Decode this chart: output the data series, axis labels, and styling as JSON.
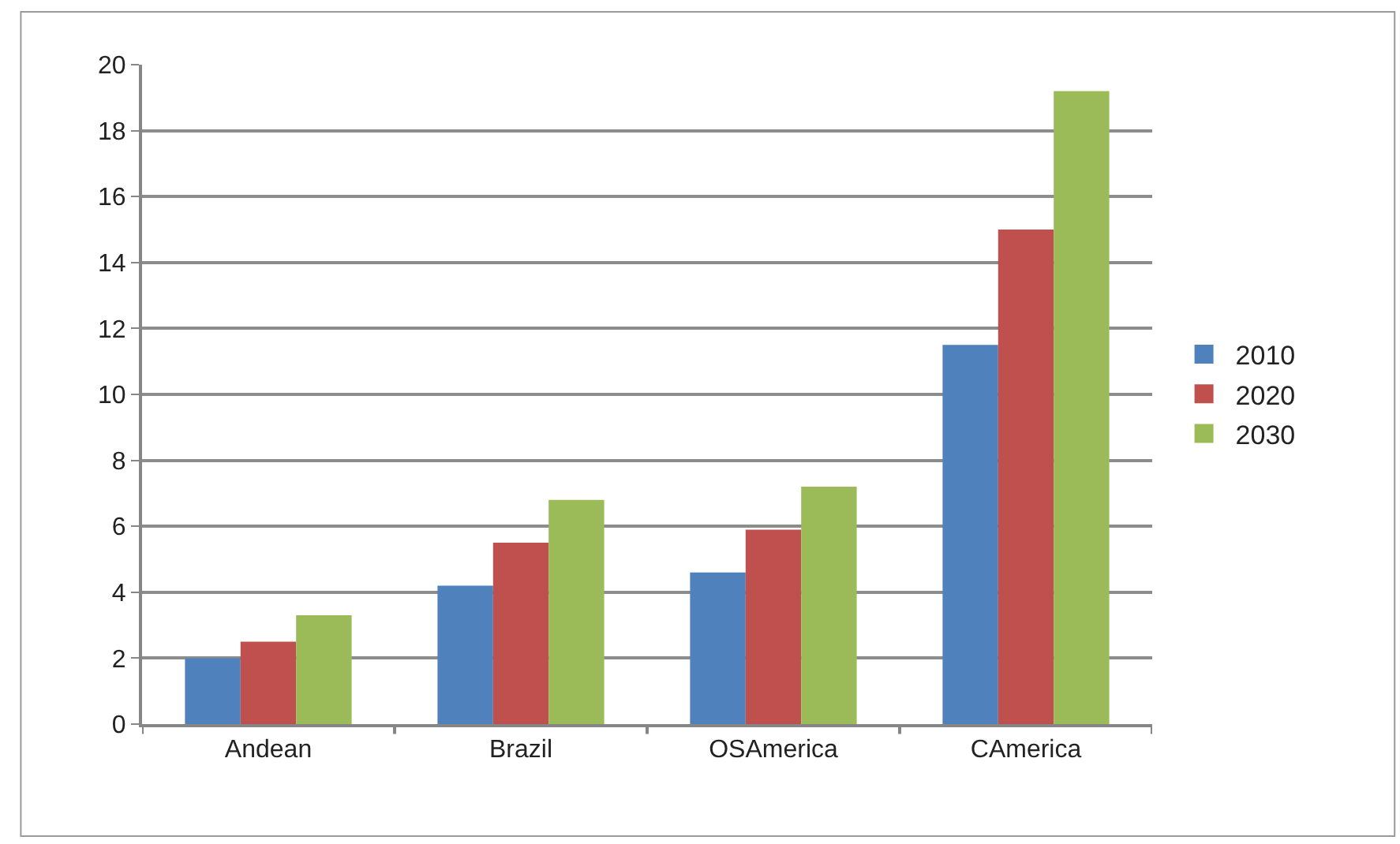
{
  "chart_data": {
    "type": "bar",
    "categories": [
      "Andean",
      "Brazil",
      "OSAmerica",
      "CAmerica"
    ],
    "series": [
      {
        "name": "2010",
        "color": "#4f81bd",
        "values": [
          2.0,
          4.2,
          4.6,
          11.5
        ]
      },
      {
        "name": "2020",
        "color": "#c0504d",
        "values": [
          2.5,
          5.5,
          5.9,
          15.0
        ]
      },
      {
        "name": "2030",
        "color": "#9bbb59",
        "values": [
          3.3,
          6.8,
          7.2,
          19.2
        ]
      }
    ],
    "ylim": [
      0,
      20
    ],
    "yticks": [
      0,
      2,
      4,
      6,
      8,
      10,
      12,
      14,
      16,
      18,
      20
    ],
    "grid": "y",
    "legend": "right"
  }
}
